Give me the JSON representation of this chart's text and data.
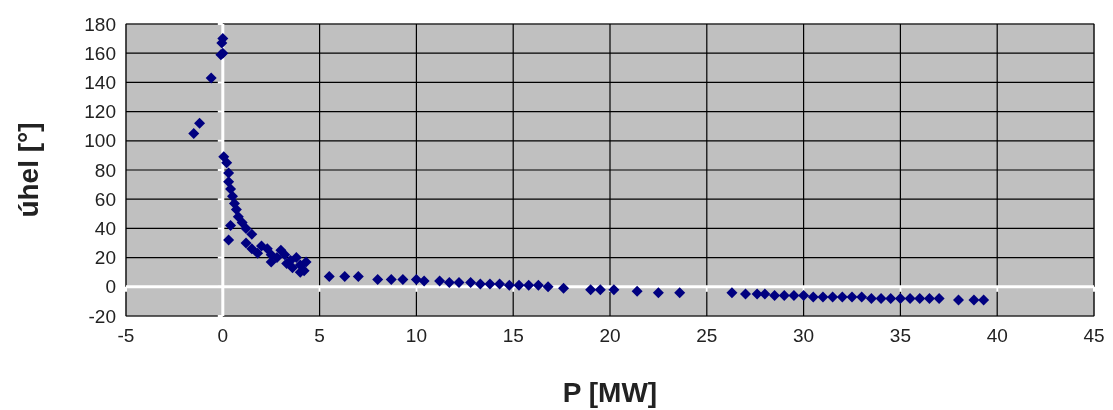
{
  "chart_data": {
    "type": "scatter",
    "xlabel": "P [MW]",
    "ylabel": "úhel [°]",
    "xlim": [
      -5,
      45
    ],
    "ylim": [
      -20,
      180
    ],
    "xticks": [
      -5,
      0,
      5,
      10,
      15,
      20,
      25,
      30,
      35,
      40,
      45
    ],
    "yticks": [
      -20,
      0,
      20,
      40,
      60,
      80,
      100,
      120,
      140,
      160,
      180
    ],
    "grid": true,
    "marker": "diamond",
    "series": [
      {
        "color": "#000080",
        "x": [
          0,
          -0.05,
          0,
          -0.1,
          -0.6,
          -1.2,
          -1.5,
          0.05,
          0.2,
          0.3,
          0.3,
          0.4,
          0.5,
          0.6,
          0.7,
          0.8,
          1,
          1.2,
          1.5,
          0.4,
          0.3,
          1.5,
          1.8,
          2,
          2.3,
          2.5,
          2.8,
          3,
          3.2,
          3.3,
          3.5,
          3.6,
          3.8,
          4,
          4,
          4.3,
          4.2,
          2.5,
          1.2,
          5.5,
          6.3,
          7,
          8,
          8.7,
          9.3,
          10,
          10.4,
          11.2,
          11.7,
          12.2,
          12.8,
          13.3,
          13.8,
          14.3,
          14.8,
          15.3,
          15.8,
          16.3,
          16.8,
          17.6,
          19,
          19.5,
          20.2,
          21.4,
          22.5,
          23.6,
          26.3,
          27,
          27.6,
          28,
          28.5,
          29,
          29.5,
          30,
          30.5,
          31,
          31.5,
          32,
          32.5,
          33,
          33.5,
          34,
          34.5,
          35,
          35.5,
          36,
          36.5,
          37,
          38,
          38.8,
          39.3
        ],
        "values": [
          170,
          167,
          160,
          159,
          143,
          112,
          105,
          89,
          85,
          78,
          72,
          67,
          62,
          57,
          53,
          48,
          44,
          40,
          36,
          42,
          32,
          26,
          23,
          28,
          26,
          22,
          20,
          25,
          22,
          16,
          18,
          13,
          20,
          15,
          10,
          17,
          11,
          17,
          30,
          7,
          7,
          7,
          5,
          5,
          5,
          5,
          4,
          4,
          3,
          3,
          3,
          2,
          2,
          2,
          1,
          1,
          1,
          1,
          0,
          -1,
          -2,
          -2,
          -2,
          -3,
          -4,
          -4,
          -4,
          -5,
          -5,
          -5,
          -6,
          -6,
          -6,
          -6,
          -7,
          -7,
          -7,
          -7,
          -7,
          -7,
          -8,
          -8,
          -8,
          -8,
          -8,
          -8,
          -8,
          -8,
          -9,
          -9,
          -9
        ]
      }
    ]
  }
}
